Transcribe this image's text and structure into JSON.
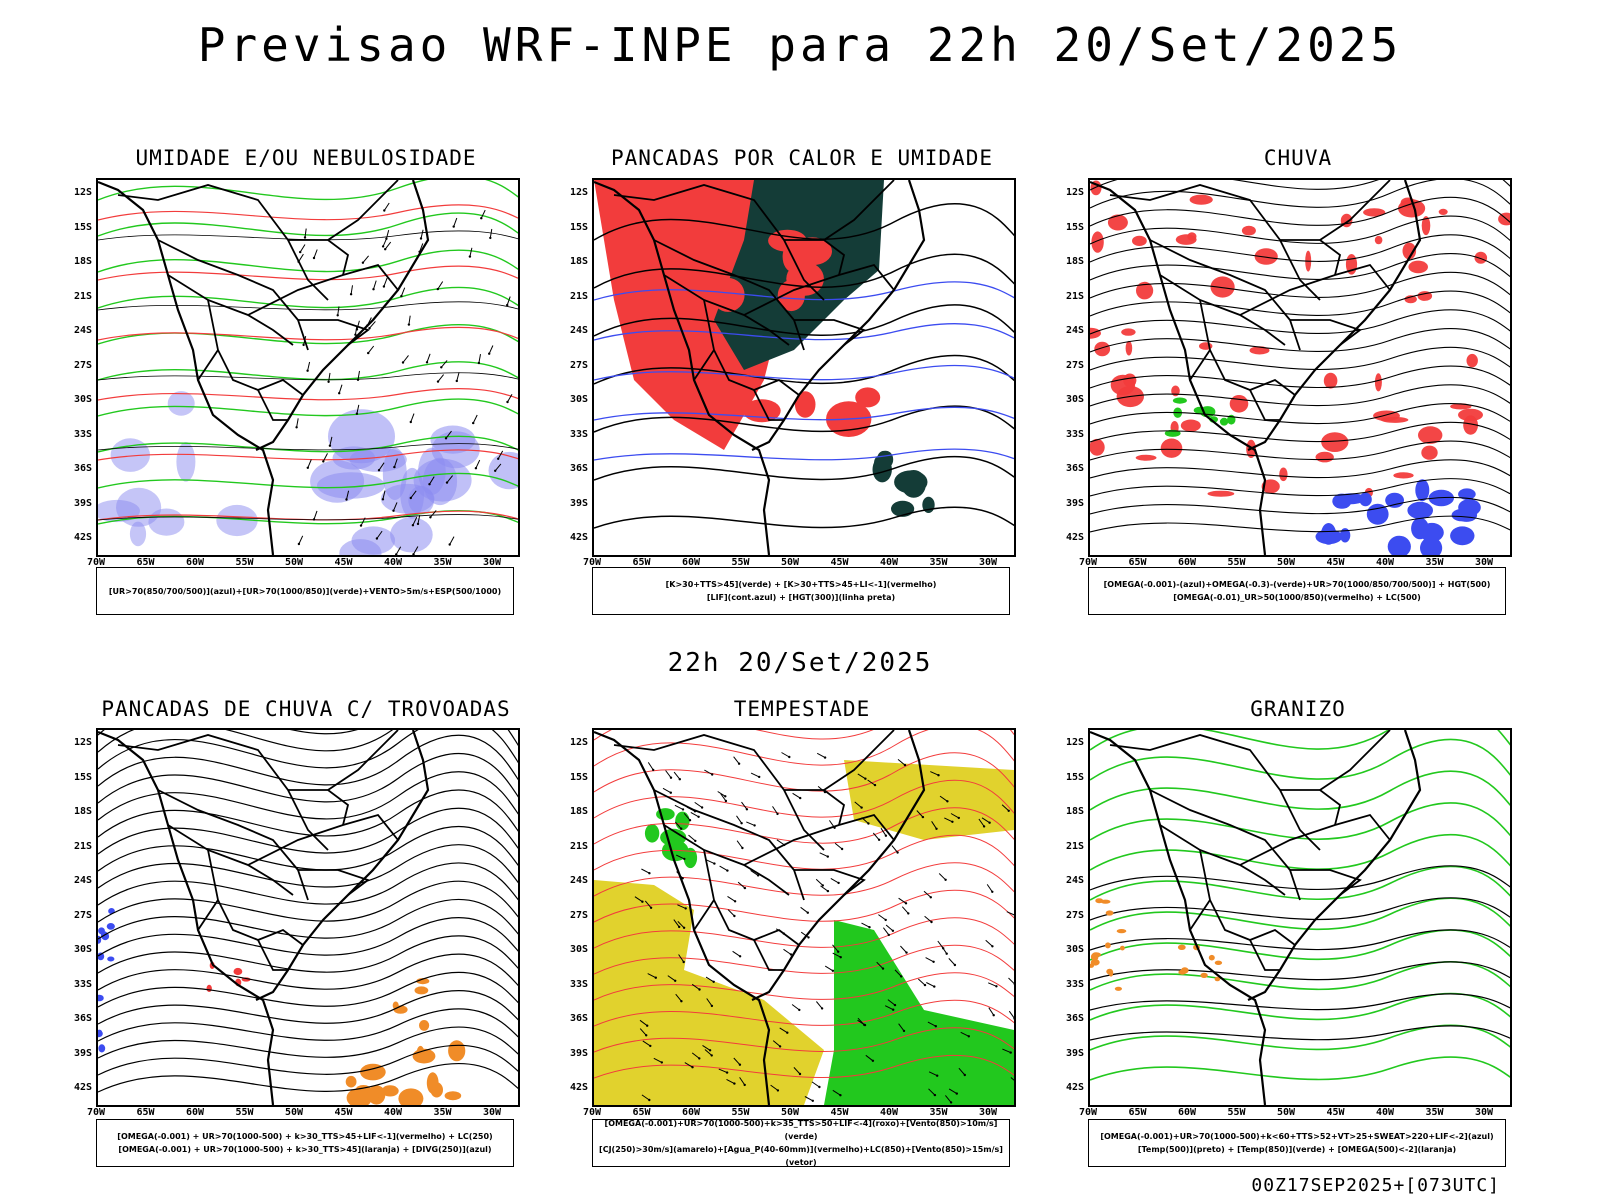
{
  "header": {
    "title": "Previsao WRF-INPE  para 22h 20/Set/2025"
  },
  "middle": {
    "title": "22h 20/Set/2025"
  },
  "footer": {
    "run_id": "00Z17SEP2025+[073UTC]"
  },
  "axes": {
    "lat_labels": [
      "12S",
      "15S",
      "18S",
      "21S",
      "24S",
      "27S",
      "30S",
      "33S",
      "36S",
      "39S",
      "42S"
    ],
    "lon_labels": [
      "70W",
      "65W",
      "60W",
      "55W",
      "50W",
      "45W",
      "40W",
      "35W",
      "30W"
    ]
  },
  "panels": [
    {
      "title": "UMIDADE E/OU NEBULOSIDADE",
      "legend": [
        "[UR>70(850/700/500)](azul)+[UR>70(1000/850)](verde)+VENTO>5m/s+ESP(500/1000)"
      ]
    },
    {
      "title": "PANCADAS POR CALOR E UMIDADE",
      "legend": [
        "[K>30+TTS>45](verde) + [K>30+TTS>45+LI<-1](vermelho)",
        "[LIF](cont.azul) + [HGT(300)](linha preta)"
      ]
    },
    {
      "title": "CHUVA",
      "legend": [
        "[OMEGA(-0.001)-(azul)+OMEGA(-0.3)-(verde)+UR>70(1000/850/700/500)] + HGT(500)",
        "[OMEGA(-0.01)_UR>50(1000/850)(vermelho) + LC(500)"
      ]
    },
    {
      "title": "PANCADAS DE CHUVA C/ TROVOADAS",
      "legend": [
        "[OMEGA(-0.001) + UR>70(1000-500) + k>30_TTS>45+LIF<-1](vermelho) + LC(250)",
        "[OMEGA(-0.001) + UR>70(1000-500) + k>30_TTS>45](laranja) + [DIVG(250)](azul)"
      ]
    },
    {
      "title": "TEMPESTADE",
      "legend": [
        "[OMEGA(-0.001)+UR>70(1000-500)+k>35_TTS>50+LIF<-4](roxo)+[Vento(850)>10m/s](verde)",
        "[CJ(250)>30m/s](amarelo)+[Agua_P(40-60mm)](vermelho)+LC(850)+[Vento(850)>15m/s](vetor)"
      ]
    },
    {
      "title": "GRANIZO",
      "legend": [
        "[OMEGA(-0.001)+UR>70(1000-500)+k<60+TTS>52+VT>25+SWEAT>220+LIF<-2](azul)",
        "[Temp(500)](preto) + [Temp(850)](verde) + [OMEGA(500)<-2](laranja)"
      ]
    }
  ],
  "colors": {
    "red": "#f23c3c",
    "green": "#22c81e",
    "blue": "#3c4cf0",
    "lightblue": "#8c8cf0",
    "darkgreen": "#143c37",
    "yellow": "#e1d22d",
    "orange": "#f08c28"
  }
}
